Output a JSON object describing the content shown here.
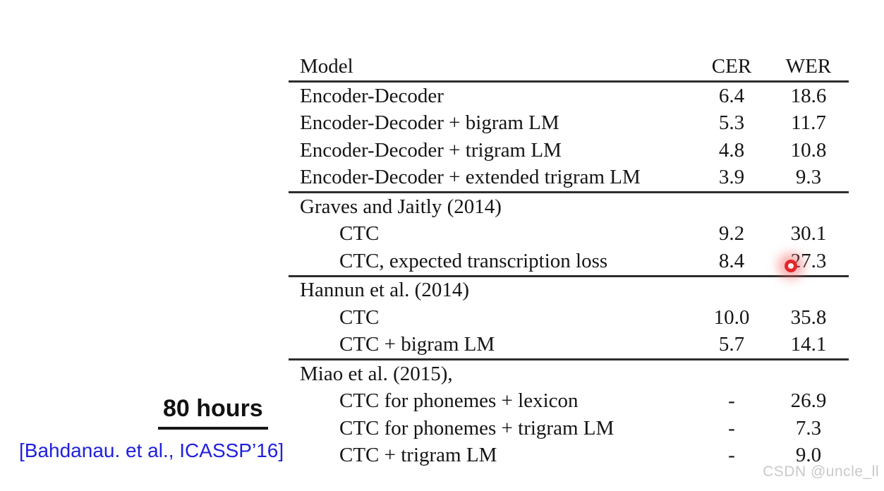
{
  "table": {
    "columns": [
      "Model",
      "CER",
      "WER"
    ],
    "sections": [
      {
        "rows": [
          {
            "label": "Encoder-Decoder",
            "cer": "6.4",
            "wer": "18.6"
          },
          {
            "label": "Encoder-Decoder + bigram LM",
            "cer": "5.3",
            "wer": "11.7"
          },
          {
            "label": "Encoder-Decoder + trigram LM",
            "cer": "4.8",
            "wer": "10.8"
          },
          {
            "label": "Encoder-Decoder + extended trigram LM",
            "cer": "3.9",
            "wer": "9.3"
          }
        ]
      },
      {
        "rows": [
          {
            "label": "Graves and Jaitly (2014)",
            "cer": "",
            "wer": ""
          },
          {
            "label": "CTC",
            "cer": "9.2",
            "wer": "30.1"
          },
          {
            "label": "CTC, expected transcription loss",
            "cer": "8.4",
            "wer": "27.3"
          }
        ]
      },
      {
        "rows": [
          {
            "label": "Hannun et al. (2014)",
            "cer": "",
            "wer": ""
          },
          {
            "label": "CTC",
            "cer": "10.0",
            "wer": "35.8"
          },
          {
            "label": "CTC + bigram LM",
            "cer": "5.7",
            "wer": "14.1"
          }
        ]
      },
      {
        "rows": [
          {
            "label": "Miao et al. (2015),",
            "cer": "",
            "wer": ""
          },
          {
            "label": "CTC for phonemes + lexicon",
            "cer": "-",
            "wer": "26.9"
          },
          {
            "label": "CTC for phonemes + trigram LM",
            "cer": "-",
            "wer": "7.3"
          },
          {
            "label": "CTC + trigram LM",
            "cer": "-",
            "wer": "9.0"
          }
        ]
      }
    ]
  },
  "annotations": {
    "hours": "80 hours",
    "citation": "[Bahdanau. et al., ICASSP’16]",
    "watermark": "CSDN @uncle_ll"
  },
  "colors": {
    "citation_blue": "#2020dd",
    "laser_red": "#e3262b",
    "watermark_gray": "#c9c9cc",
    "rule_dark": "#2d2d2d"
  }
}
